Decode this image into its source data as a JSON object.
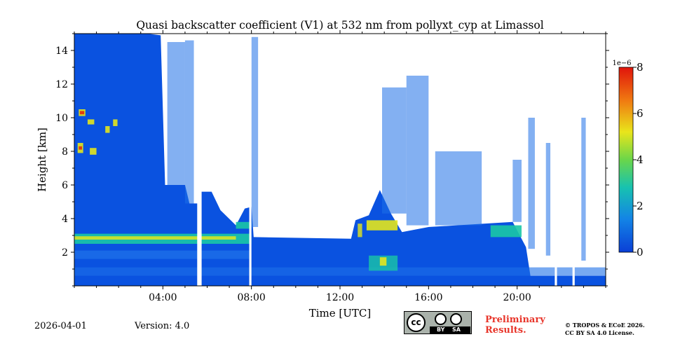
{
  "chart_data": {
    "type": "heatmap",
    "title": "Quasi backscatter coefficient (V1) at 532 nm from pollyxt_cyp at Limassol",
    "xlabel": "Time [UTC]",
    "ylabel": "Height [km]",
    "xlim_hours": [
      0,
      24
    ],
    "ylim_km": [
      0,
      15
    ],
    "x_ticks": [
      {
        "hour": 4,
        "label": "04:00"
      },
      {
        "hour": 8,
        "label": "08:00"
      },
      {
        "hour": 12,
        "label": "12:00"
      },
      {
        "hour": 16,
        "label": "16:00"
      },
      {
        "hour": 20,
        "label": "20:00"
      }
    ],
    "y_ticks": [
      {
        "value": 2,
        "label": "2"
      },
      {
        "value": 4,
        "label": "4"
      },
      {
        "value": 6,
        "label": "6"
      },
      {
        "value": 8,
        "label": "8"
      },
      {
        "value": 10,
        "label": "10"
      },
      {
        "value": 12,
        "label": "12"
      },
      {
        "value": 14,
        "label": "14"
      }
    ],
    "colorbar": {
      "min": 0,
      "max": 8,
      "scale_label": "1e−6",
      "ticks": [
        {
          "value": 0,
          "label": "0"
        },
        {
          "value": 2,
          "label": "2"
        },
        {
          "value": 4,
          "label": "4"
        },
        {
          "value": 6,
          "label": "6"
        },
        {
          "value": 8,
          "label": "8"
        }
      ]
    },
    "colors": {
      "background": "#0a52e0",
      "low": "#1d6fe8",
      "mid": "#19c6a6",
      "high": "#e3e61c",
      "peak": "#e52a0e"
    }
  },
  "footer": {
    "date": "2026-04-01",
    "version": "Version: 4.0",
    "preliminary_line1": "Preliminary",
    "preliminary_line2": "Results.",
    "copyright_line1": "© TROPOS & ECoE 2026.",
    "copyright_line2": "CC BY SA 4.0 License.",
    "cc_symbol": "cc",
    "by_label": "BY",
    "sa_label": "SA"
  }
}
